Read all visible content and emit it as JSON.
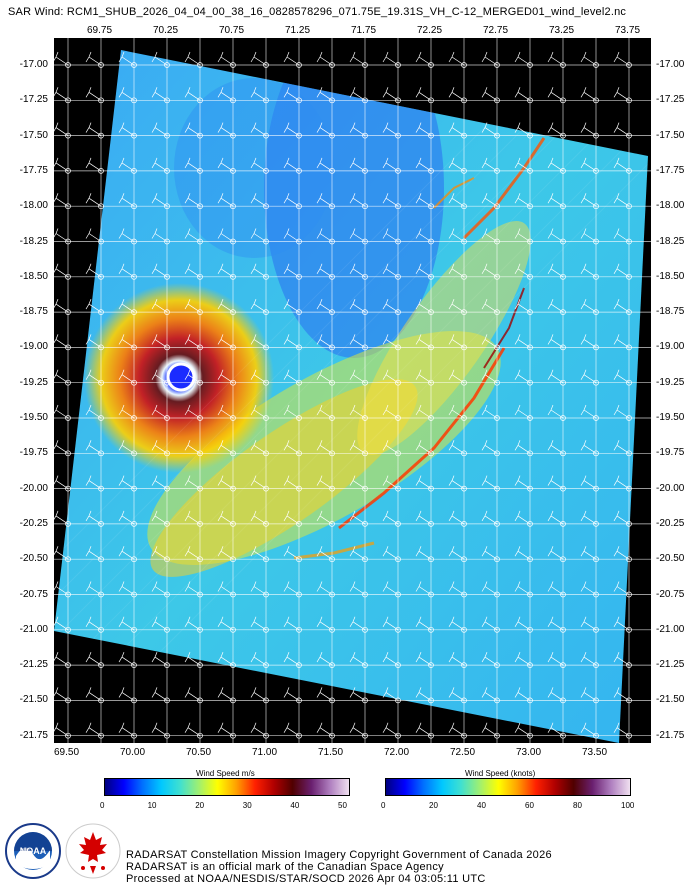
{
  "title": "SAR Wind: RCM1_SHUB_2026_04_04_00_38_16_0828578296_071.75E_19.31S_VH_C-12_MERGED01_wind_level2.nc",
  "map": {
    "lon_top": [
      "69.75",
      "70.25",
      "70.75",
      "71.25",
      "71.75",
      "72.25",
      "72.75",
      "73.25",
      "73.75"
    ],
    "lon_bottom": [
      "69.50",
      "70.00",
      "70.50",
      "71.00",
      "71.50",
      "72.00",
      "72.50",
      "73.00",
      "73.50"
    ],
    "lat": [
      "-17.00",
      "-17.25",
      "-17.50",
      "-17.75",
      "-18.00",
      "-18.25",
      "-18.50",
      "-18.75",
      "-19.00",
      "-19.25",
      "-19.50",
      "-19.75",
      "-20.00",
      "-20.25",
      "-20.50",
      "-20.75",
      "-21.00",
      "-21.25",
      "-21.50",
      "-21.75"
    ],
    "lon_range": [
      69.5,
      73.95
    ],
    "lat_range": [
      -17.0,
      -21.75
    ]
  },
  "colorbars": [
    {
      "title": "Wind Speed m/s",
      "ticks": [
        "0",
        "10",
        "20",
        "30",
        "40",
        "50"
      ]
    },
    {
      "title": "Wind Speed (knots)",
      "ticks": [
        "0",
        "20",
        "40",
        "60",
        "80",
        "100"
      ]
    }
  ],
  "colors": {
    "background": "#000000",
    "low": "#1a5cff",
    "mid": "#36c0ee",
    "high": "#ffe100",
    "peak": "#e01010"
  },
  "footer": {
    "line1": "RADARSAT Constellation Mission Imagery Copyright Government of Canada 2026",
    "line2": "RADARSAT is an official mark of the Canadian Space Agency",
    "line3": "Processed at NOAA/NESDIS/STAR/SOCD 2026 Apr 04 03:05:11 UTC"
  },
  "logos": {
    "noaa_text": "NOAA",
    "csa_text": "CANADIAN SPACE AGENCY · AGENCE SPATIALE CANADIENNE"
  }
}
